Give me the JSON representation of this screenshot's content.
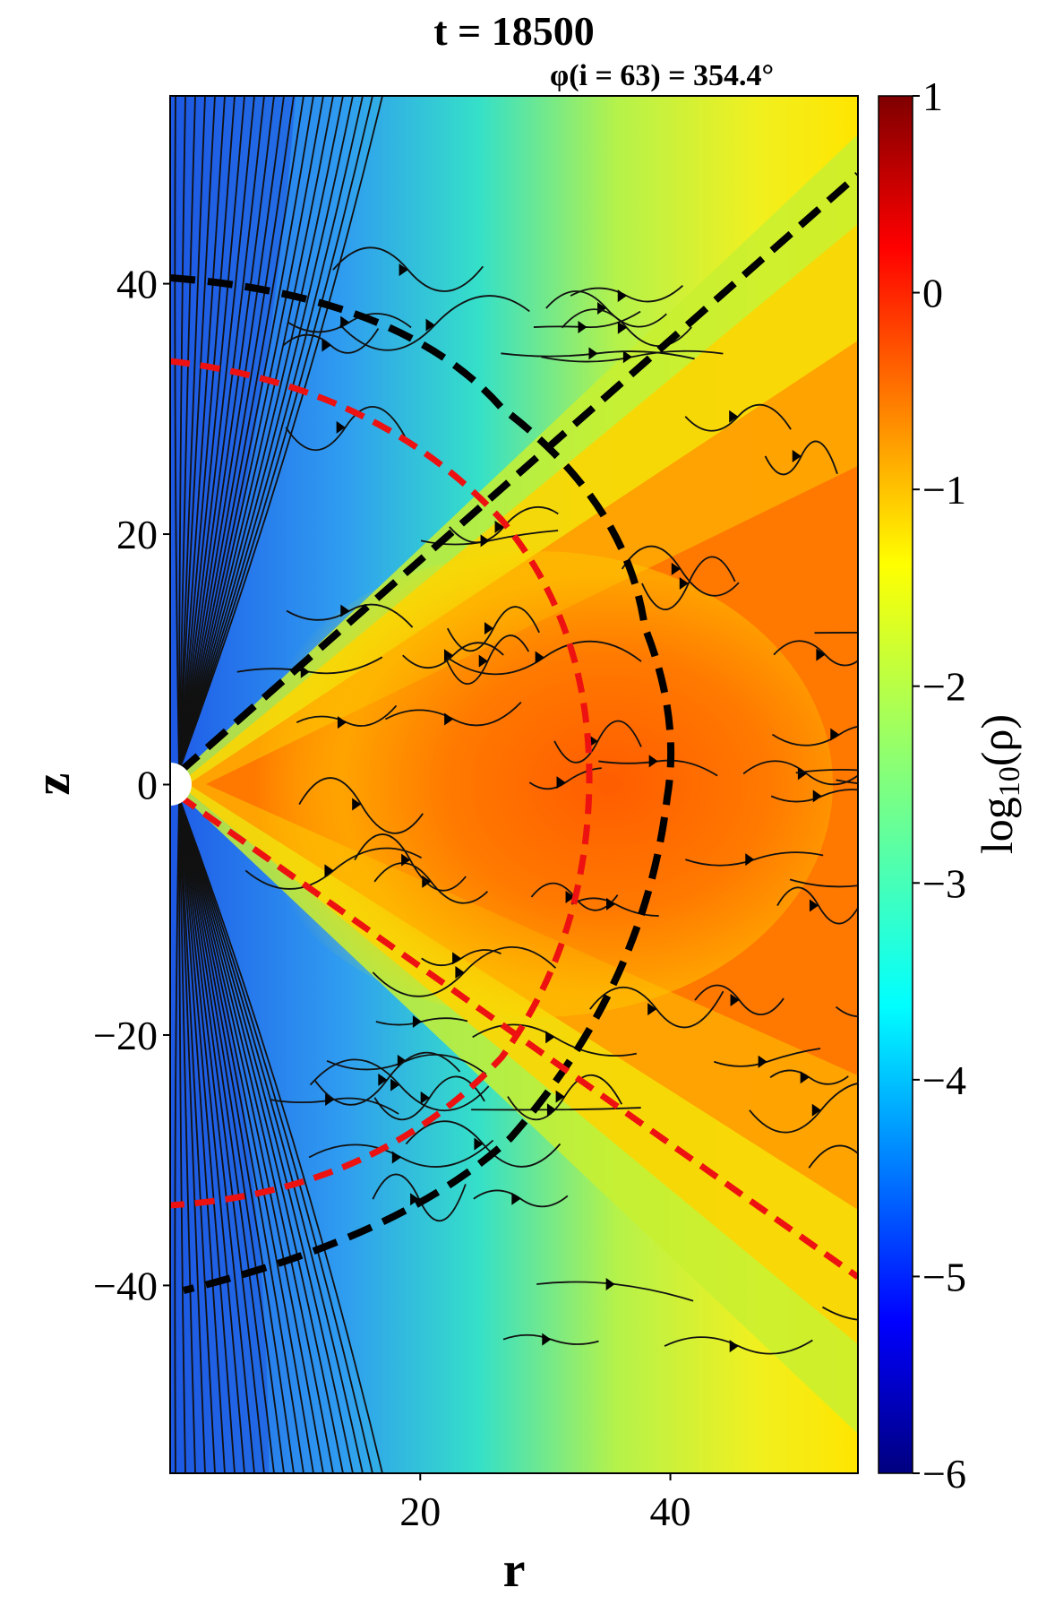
{
  "chart_data": {
    "type": "heatmap",
    "title": "t = 18500",
    "subtitle": "φ(i = 63) = 354.4°",
    "xlabel": "r",
    "ylabel": "z",
    "xlim": [
      0,
      55
    ],
    "ylim": [
      -55,
      55
    ],
    "x_ticks": [
      20,
      40
    ],
    "x_tick_labels": [
      "20",
      "40"
    ],
    "y_ticks": [
      40,
      20,
      0,
      -20,
      -40
    ],
    "y_tick_labels": [
      "40",
      "20",
      "0",
      "−20",
      "−40"
    ],
    "colorbar": {
      "label": "log10(ρ)",
      "range": [
        -6,
        1
      ],
      "ticks": [
        1,
        0,
        -1,
        -2,
        -3,
        -4,
        -5,
        -6
      ],
      "tick_labels": [
        "1",
        "0",
        "−1",
        "−2",
        "−3",
        "−4",
        "−5",
        "−6"
      ],
      "colormap": "jet"
    },
    "overlays": {
      "streamlines": "field lines with arrows",
      "red_dashed_radius": 33.5,
      "black_dashed": "cone and curved contours",
      "colors": {
        "red": "#ee1111",
        "black": "#000000"
      }
    }
  }
}
